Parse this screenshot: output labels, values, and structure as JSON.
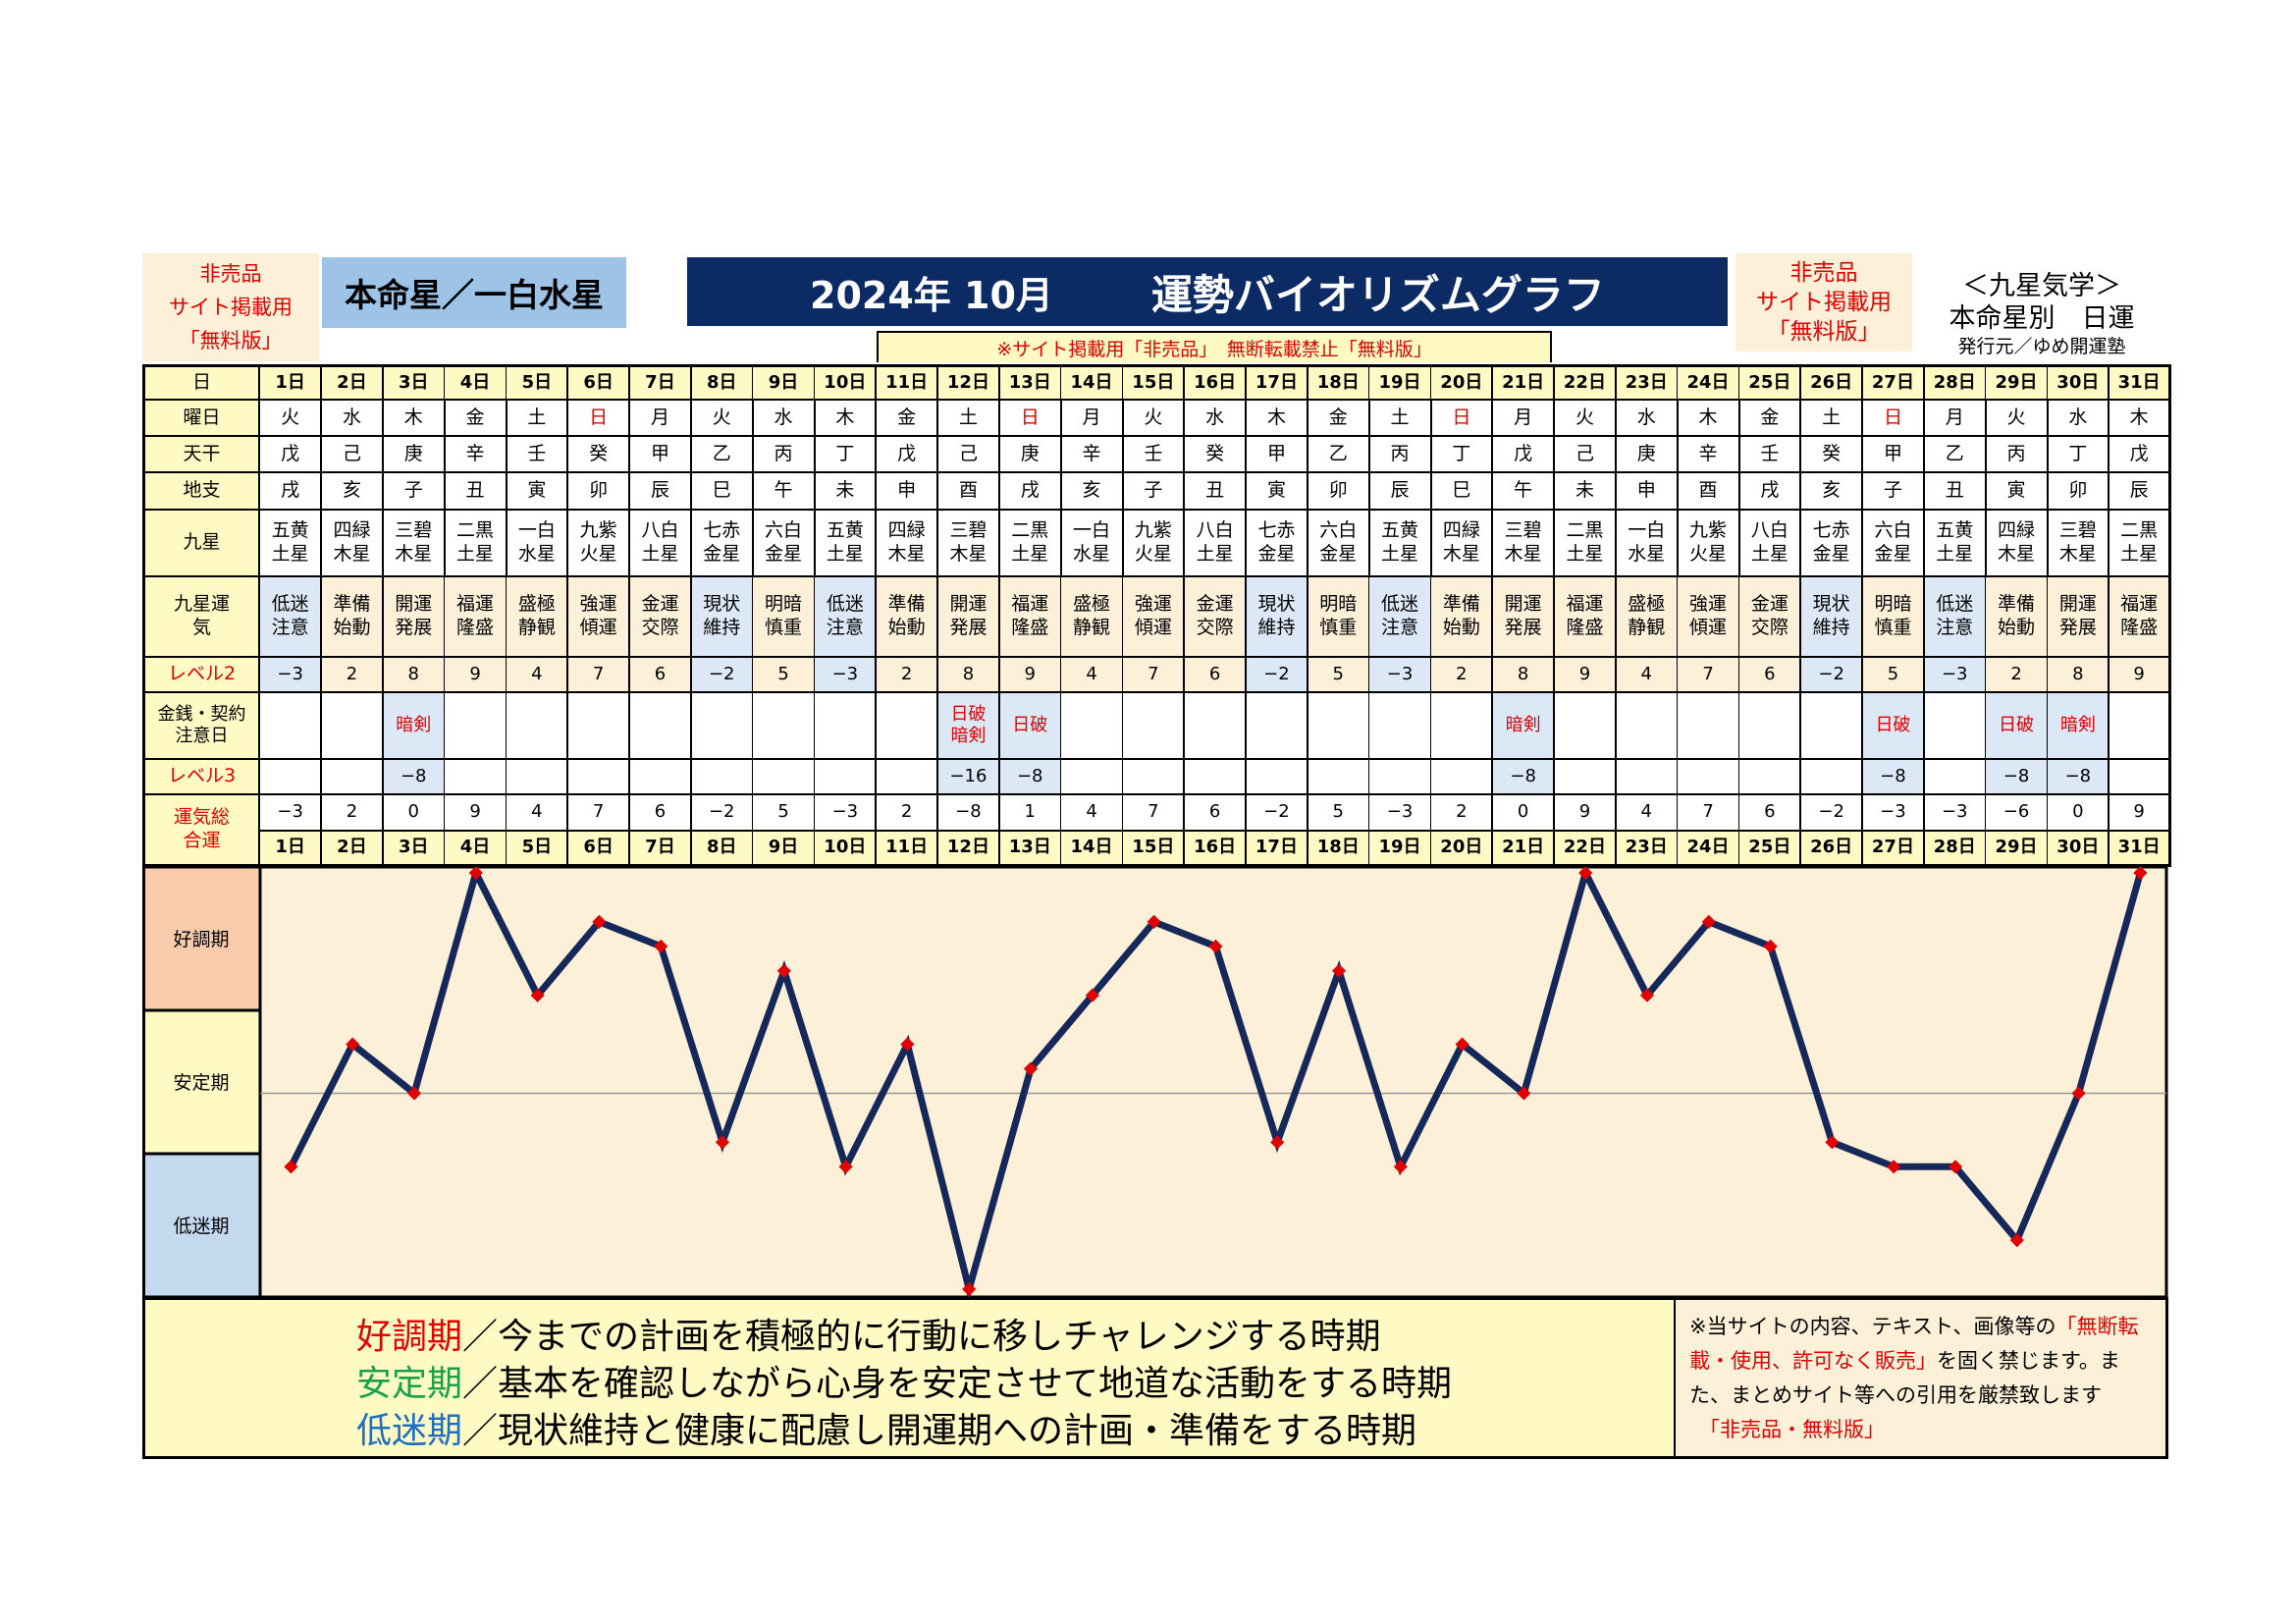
{
  "header": {
    "left_note": [
      "非売品",
      "サイト掲載用",
      "「無料版」"
    ],
    "honmeisei": "本命星／一白水星",
    "title_year_month": "2024年 10月",
    "title_main": "運勢バイオリズムグラフ",
    "right_note": [
      "非売品",
      "サイト掲載用",
      "「無料版」"
    ],
    "brand": [
      "＜九星気学＞",
      "本命星別　日運"
    ],
    "publisher": "発行元／ゆめ開運塾",
    "notice": "※サイト掲載用「非売品」　無断転載禁止「無料版」"
  },
  "row_labels": {
    "day": "日",
    "weekday": "曜日",
    "tenkan": "天干",
    "chishi": "地支",
    "kyusei": "九星",
    "kyusei_unki": "九星運気",
    "level2": "レベル2",
    "money": "金銭・契約注意日",
    "level3": "レベル3",
    "total": "運気総合運"
  },
  "days": [
    "1日",
    "2日",
    "3日",
    "4日",
    "5日",
    "6日",
    "7日",
    "8日",
    "9日",
    "10日",
    "11日",
    "12日",
    "13日",
    "14日",
    "15日",
    "16日",
    "17日",
    "18日",
    "19日",
    "20日",
    "21日",
    "22日",
    "23日",
    "24日",
    "25日",
    "26日",
    "27日",
    "28日",
    "29日",
    "30日",
    "31日"
  ],
  "weekdays": [
    "火",
    "水",
    "木",
    "金",
    "土",
    "日",
    "月",
    "火",
    "水",
    "木",
    "金",
    "土",
    "日",
    "月",
    "火",
    "水",
    "木",
    "金",
    "土",
    "日",
    "月",
    "火",
    "水",
    "木",
    "金",
    "土",
    "日",
    "月",
    "火",
    "水",
    "木"
  ],
  "tenkan": [
    "戊",
    "己",
    "庚",
    "辛",
    "壬",
    "癸",
    "甲",
    "乙",
    "丙",
    "丁",
    "戊",
    "己",
    "庚",
    "辛",
    "壬",
    "癸",
    "甲",
    "乙",
    "丙",
    "丁",
    "戊",
    "己",
    "庚",
    "辛",
    "壬",
    "癸",
    "甲",
    "乙",
    "丙",
    "丁",
    "戊"
  ],
  "chishi": [
    "戌",
    "亥",
    "子",
    "丑",
    "寅",
    "卯",
    "辰",
    "巳",
    "午",
    "未",
    "申",
    "酉",
    "戌",
    "亥",
    "子",
    "丑",
    "寅",
    "卯",
    "辰",
    "巳",
    "午",
    "未",
    "申",
    "酉",
    "戌",
    "亥",
    "子",
    "丑",
    "寅",
    "卯",
    "辰"
  ],
  "kyusei": [
    [
      "五黄",
      "土星"
    ],
    [
      "四緑",
      "木星"
    ],
    [
      "三碧",
      "木星"
    ],
    [
      "二黒",
      "土星"
    ],
    [
      "一白",
      "水星"
    ],
    [
      "九紫",
      "火星"
    ],
    [
      "八白",
      "土星"
    ],
    [
      "七赤",
      "金星"
    ],
    [
      "六白",
      "金星"
    ],
    [
      "五黄",
      "土星"
    ],
    [
      "四緑",
      "木星"
    ],
    [
      "三碧",
      "木星"
    ],
    [
      "二黒",
      "土星"
    ],
    [
      "一白",
      "水星"
    ],
    [
      "九紫",
      "火星"
    ],
    [
      "八白",
      "土星"
    ],
    [
      "七赤",
      "金星"
    ],
    [
      "六白",
      "金星"
    ],
    [
      "五黄",
      "土星"
    ],
    [
      "四緑",
      "木星"
    ],
    [
      "三碧",
      "木星"
    ],
    [
      "二黒",
      "土星"
    ],
    [
      "一白",
      "水星"
    ],
    [
      "九紫",
      "火星"
    ],
    [
      "八白",
      "土星"
    ],
    [
      "七赤",
      "金星"
    ],
    [
      "六白",
      "金星"
    ],
    [
      "五黄",
      "土星"
    ],
    [
      "四緑",
      "木星"
    ],
    [
      "三碧",
      "木星"
    ],
    [
      "二黒",
      "土星"
    ]
  ],
  "unki": [
    [
      "低迷",
      "注意"
    ],
    [
      "準備",
      "始動"
    ],
    [
      "開運",
      "発展"
    ],
    [
      "福運",
      "隆盛"
    ],
    [
      "盛極",
      "静観"
    ],
    [
      "強運",
      "傾運"
    ],
    [
      "金運",
      "交際"
    ],
    [
      "現状",
      "維持"
    ],
    [
      "明暗",
      "慎重"
    ],
    [
      "低迷",
      "注意"
    ],
    [
      "準備",
      "始動"
    ],
    [
      "開運",
      "発展"
    ],
    [
      "福運",
      "隆盛"
    ],
    [
      "盛極",
      "静観"
    ],
    [
      "強運",
      "傾運"
    ],
    [
      "金運",
      "交際"
    ],
    [
      "現状",
      "維持"
    ],
    [
      "明暗",
      "慎重"
    ],
    [
      "低迷",
      "注意"
    ],
    [
      "準備",
      "始動"
    ],
    [
      "開運",
      "発展"
    ],
    [
      "福運",
      "隆盛"
    ],
    [
      "盛極",
      "静観"
    ],
    [
      "強運",
      "傾運"
    ],
    [
      "金運",
      "交際"
    ],
    [
      "現状",
      "維持"
    ],
    [
      "明暗",
      "慎重"
    ],
    [
      "低迷",
      "注意"
    ],
    [
      "準備",
      "始動"
    ],
    [
      "開運",
      "発展"
    ],
    [
      "福運",
      "隆盛"
    ]
  ],
  "level2": [
    -3,
    2,
    8,
    9,
    4,
    7,
    6,
    -2,
    5,
    -3,
    2,
    8,
    9,
    4,
    7,
    6,
    -2,
    5,
    -3,
    2,
    8,
    9,
    4,
    7,
    6,
    -2,
    5,
    -3,
    2,
    8,
    9
  ],
  "money_notes": [
    "",
    "",
    "暗剣",
    "",
    "",
    "",
    "",
    "",
    "",
    "",
    "",
    "日破\n暗剣",
    "日破",
    "",
    "",
    "",
    "",
    "",
    "",
    "",
    "暗剣",
    "",
    "",
    "",
    "",
    "",
    "日破",
    "",
    "日破",
    "暗剣",
    ""
  ],
  "level3": [
    "",
    "",
    "-8",
    "",
    "",
    "",
    "",
    "",
    "",
    "",
    "",
    "-16",
    "-8",
    "",
    "",
    "",
    "",
    "",
    "",
    "",
    "-8",
    "",
    "",
    "",
    "",
    "",
    "-8",
    "",
    "-8",
    "-8",
    ""
  ],
  "total": [
    -3,
    2,
    0,
    9,
    4,
    7,
    6,
    -2,
    5,
    -3,
    2,
    -8,
    1,
    4,
    7,
    6,
    -2,
    5,
    -3,
    2,
    0,
    9,
    4,
    7,
    6,
    -2,
    -3,
    -3,
    -6,
    0,
    9
  ],
  "chart_data": {
    "type": "line",
    "title": "運勢バイオリズムグラフ",
    "categories": [
      "1日",
      "2日",
      "3日",
      "4日",
      "5日",
      "6日",
      "7日",
      "8日",
      "9日",
      "10日",
      "11日",
      "12日",
      "13日",
      "14日",
      "15日",
      "16日",
      "17日",
      "18日",
      "19日",
      "20日",
      "21日",
      "22日",
      "23日",
      "24日",
      "25日",
      "26日",
      "27日",
      "28日",
      "29日",
      "30日",
      "31日"
    ],
    "series": [
      {
        "values": [
          -3,
          2,
          0,
          9,
          4,
          7,
          6,
          -2,
          5,
          -3,
          2,
          -8,
          1,
          4,
          7,
          6,
          -2,
          5,
          -3,
          2,
          0,
          9,
          4,
          7,
          6,
          -2,
          -3,
          -3,
          -6,
          0,
          9
        ]
      }
    ],
    "ylim": [
      -8,
      9
    ],
    "bands": [
      "好調期",
      "安定期",
      "低迷期"
    ],
    "line_color": "#16285a",
    "marker_color": "#e00000",
    "baseline": 0
  },
  "legend": [
    {
      "term": "好調期",
      "color": "#e00000",
      "text": "／今までの計画を積極的に行動に移しチャレンジする時期"
    },
    {
      "term": "安定期",
      "color": "#18a04a",
      "text": "／基本を確認しながら心身を安定させて地道な活動をする時期"
    },
    {
      "term": "低迷期",
      "color": "#1f6fbf",
      "text": "／現状維持と健康に配慮し開運期への計画・準備をする時期"
    }
  ],
  "disclaimer": {
    "pre": "※当サイトの内容、テキスト、画像等の",
    "red1": "「無断転載・使用、許可なく販売」",
    "mid": "を固く禁じます。また、まとめサイト等への引用を厳禁致します",
    "red2": "「非売品・無料版」"
  },
  "colors": {
    "navy": "#0c2a63",
    "yellow": "#fff9c4",
    "cream": "#fdf0d8",
    "blue": "#dce8f6",
    "band_good": "#f8cbad",
    "band_stable": "#fff9c4",
    "band_low": "#c5d9ee"
  }
}
